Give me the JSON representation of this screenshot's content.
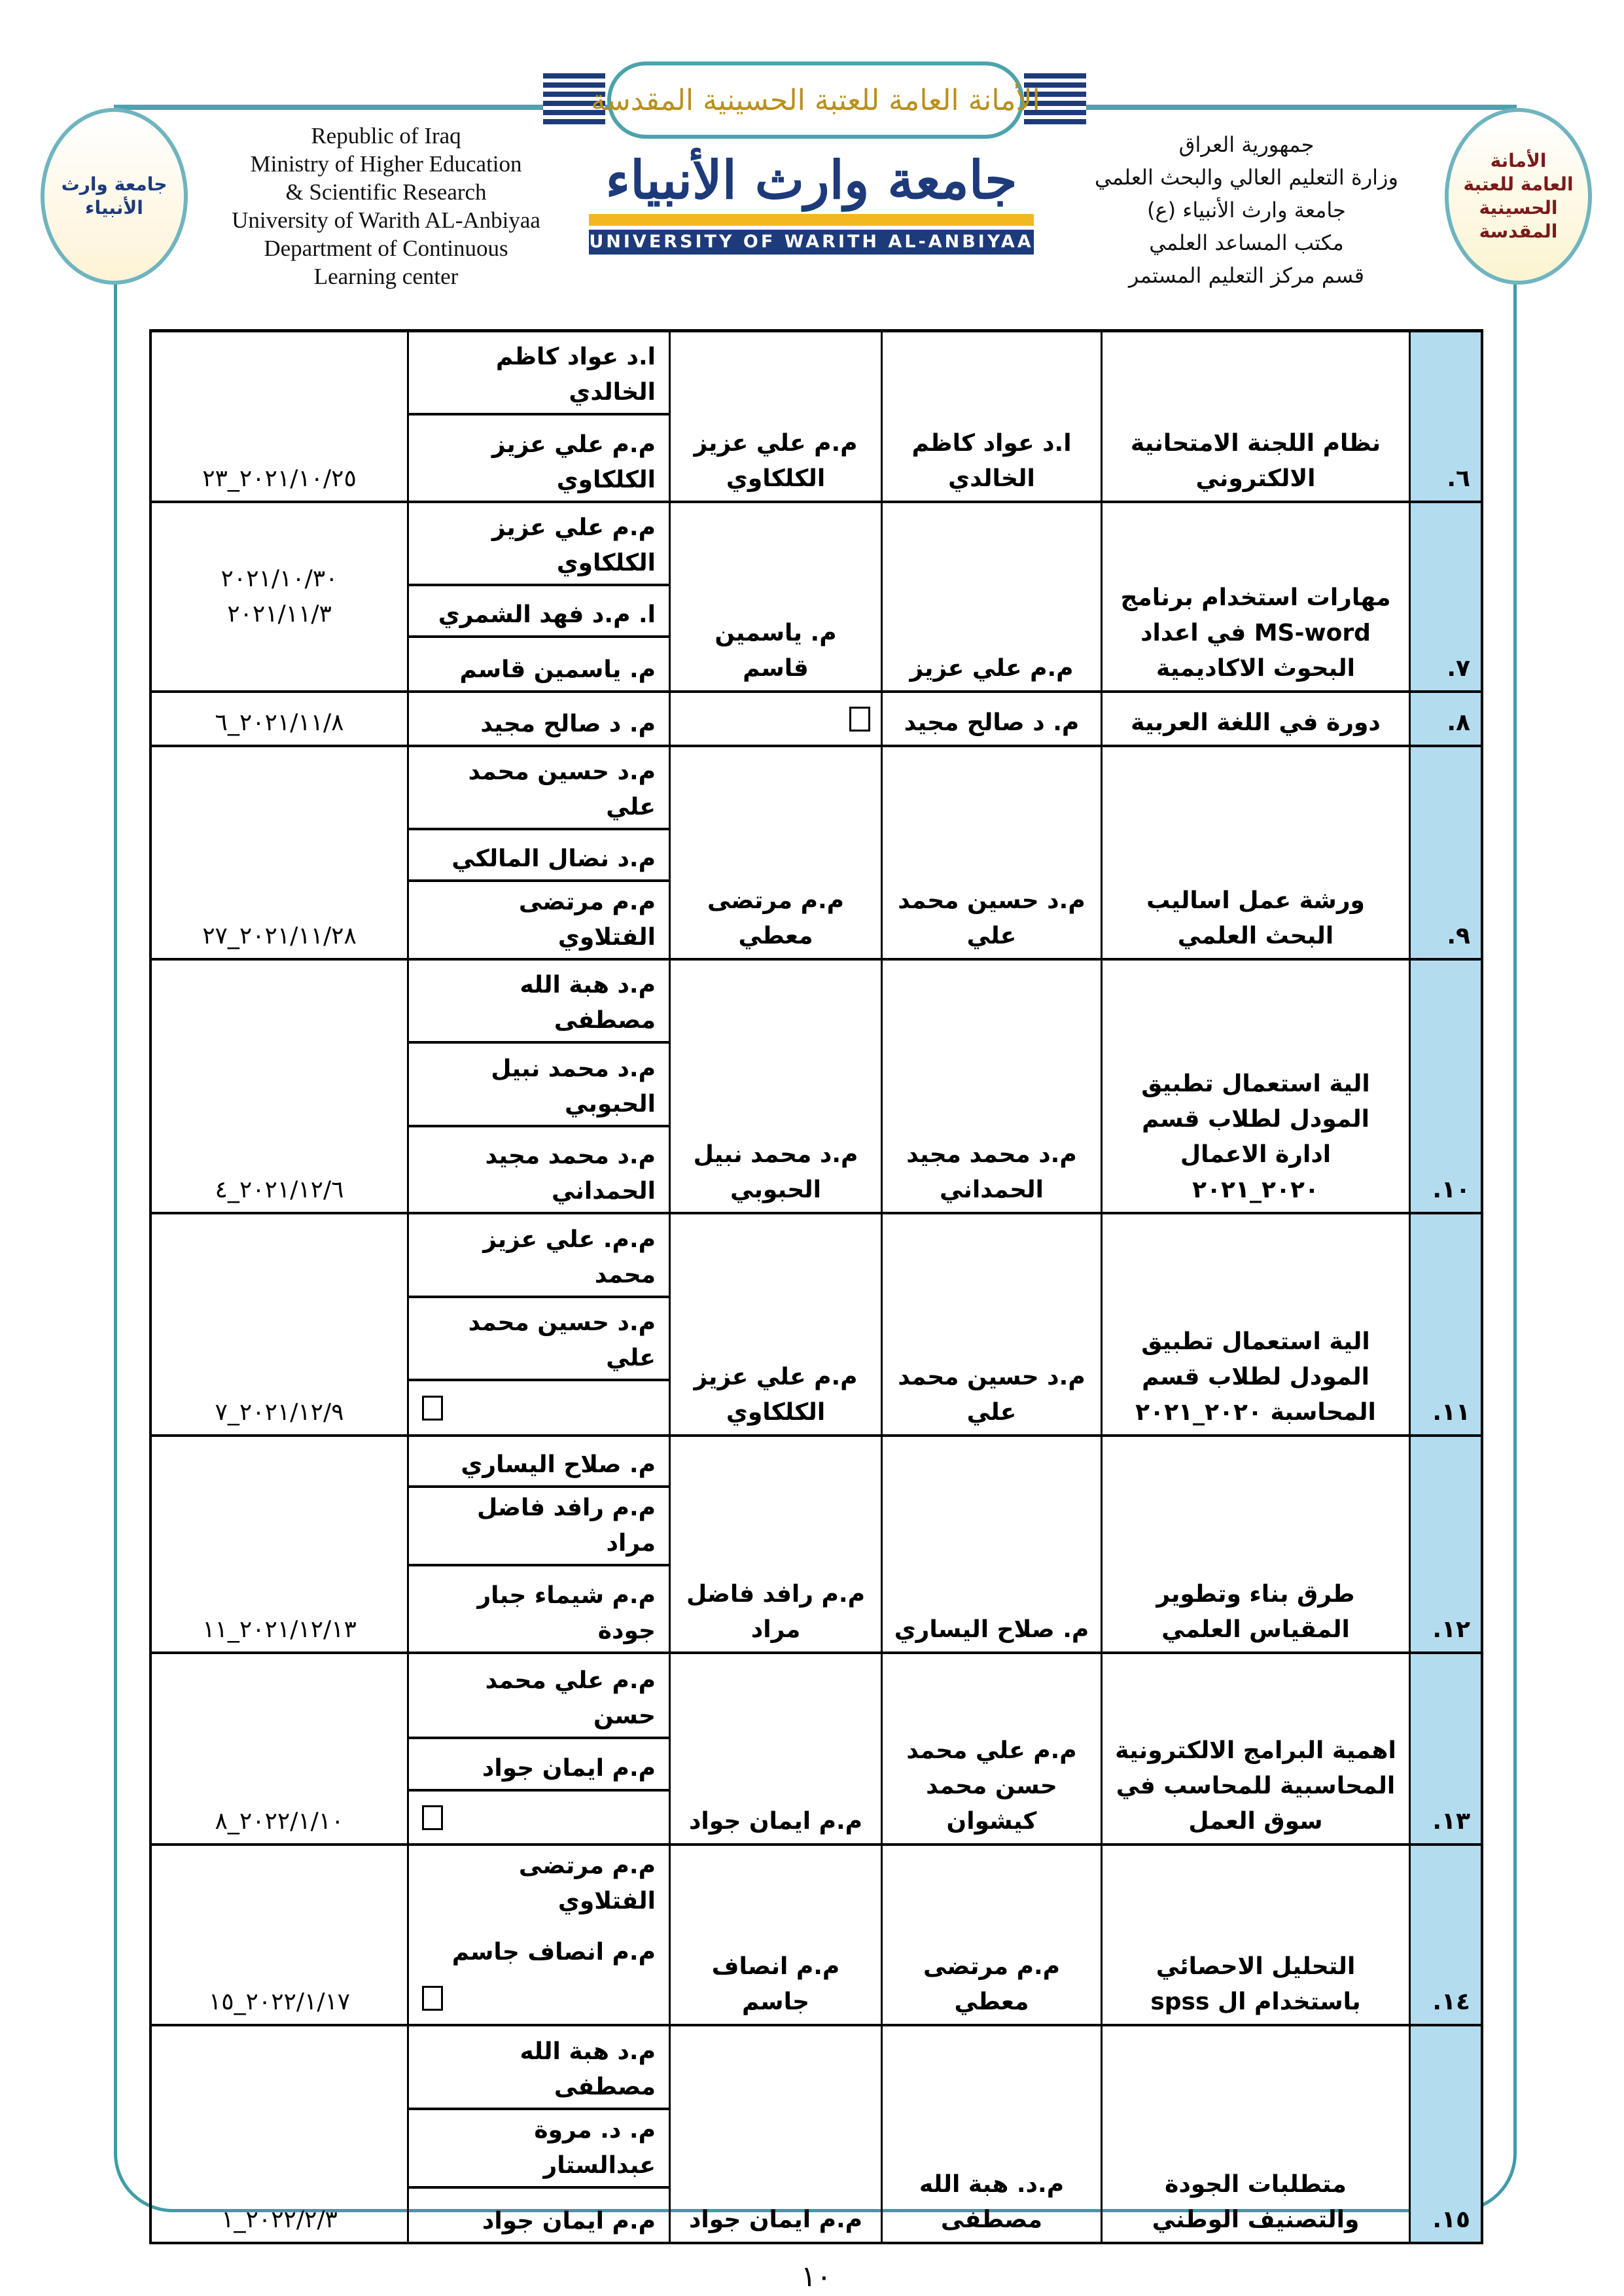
{
  "header": {
    "banner_text": "الأمانة العامة للعتبة الحسينية المقدسة",
    "english_lines": [
      "Republic of Iraq",
      "Ministry of  Higher Education",
      "& Scientific Research",
      "University of  Warith AL-Anbiyaa",
      "Department of Continuous",
      "Learning center"
    ],
    "arabic_lines": [
      "جمهورية العراق",
      "وزارة التعليم العالي والبحث العلمي",
      "جامعة وارث الأنبياء (ع)",
      "مكتب المساعد العلمي",
      "قسم مركز التعليم المستمر"
    ],
    "logo_arabic": "جامعة وارث الأنبياء",
    "logo_english": "UNIVERSITY OF WARITH AL-ANBIYAA",
    "left_seal": "جامعة وارث الأنبياء",
    "right_seal": "الأمانة العامة للعتبة الحسينية المقدسة",
    "colors": {
      "frame": "#3f9ca6",
      "number_column": "#b3dcef",
      "logo_blue": "#1d3a7a",
      "logo_gold": "#f1b81f"
    }
  },
  "rows": [
    {
      "num": "٦.",
      "title": "نظام اللجنة الامتحانية الالكتروني",
      "presenter": "ا.د عواد كاظم الخالدي",
      "coordinator": "م.م علي عزيز الكلكاوي",
      "members": [
        "ا.د عواد كاظم الخالدي",
        "م.م علي عزيز الكلكاوي"
      ],
      "date": [
        "٢٠٢١/١٠/٢٥_٢٣"
      ]
    },
    {
      "num": "٧.",
      "title": "مهارات استخدام برنامج MS-word في اعداد البحوث الاكاديمية",
      "presenter": "م.م علي عزيز",
      "coordinator": "م. ياسمين قاسم",
      "members": [
        "م.م علي عزيز الكلكاوي",
        "ا. م.د فهد الشمري",
        "م. ياسمين قاسم"
      ],
      "date": [
        "٢٠٢١/١٠/٣٠",
        "٢٠٢١/١١/٣"
      ]
    },
    {
      "num": "٨.",
      "title": "دورة في اللغة العربية",
      "presenter": "م. د صالح مجيد",
      "coordinator": "☐",
      "members": [
        "م. د صالح مجيد"
      ],
      "date": [
        "٢٠٢١/١١/٨_٦"
      ]
    },
    {
      "num": "٩.",
      "title": "ورشة عمل اساليب البحث العلمي",
      "presenter": "م.د حسين محمد علي",
      "coordinator": "م.م مرتضى معطي",
      "members": [
        "م.د حسين محمد علي",
        "م.د نضال المالكي",
        "م.م مرتضى الفتلاوي"
      ],
      "date": [
        "٢٠٢١/١١/٢٨_٢٧"
      ]
    },
    {
      "num": "١٠.",
      "title": "الية استعمال تطبيق المودل لطلاب قسم ادارة الاعمال ٢٠٢٠_٢٠٢١",
      "presenter": "م.د محمد مجيد الحمداني",
      "coordinator": "م.د محمد نبيل الحبوبي",
      "members": [
        "م.د هبة الله مصطفى",
        "م.د محمد نبيل الحبوبي",
        "م.د محمد مجيد الحمداني"
      ],
      "date": [
        "٢٠٢١/١٢/٦_٤"
      ]
    },
    {
      "num": "١١.",
      "title": "الية استعمال تطبيق المودل لطلاب قسم المحاسبة ٢٠٢٠_٢٠٢١",
      "presenter": "م.د حسين محمد علي",
      "coordinator": "م.م علي عزيز الكلكاوي",
      "members": [
        "م.م. علي عزيز محمد",
        "م.د حسين محمد علي",
        "☐"
      ],
      "date": [
        "٢٠٢١/١٢/٩_٧"
      ]
    },
    {
      "num": "١٢.",
      "title": "طرق بناء وتطوير المقياس العلمي",
      "presenter": "م. صلاح اليساري",
      "coordinator": "م.م رافد فاضل مراد",
      "members": [
        "م. صلاح اليساري",
        "م.م رافد فاضل مراد",
        "م.م شيماء جبار جودة"
      ],
      "date": [
        "٢٠٢١/١٢/١٣_١١"
      ]
    },
    {
      "num": "١٣.",
      "title": "اهمية البرامج الالكترونية المحاسبية للمحاسب في سوق العمل",
      "presenter": "م.م علي محمد حسن محمد كيشوان",
      "coordinator": "م.م ايمان جواد",
      "members": [
        "م.م علي محمد حسن",
        "م.م ايمان جواد",
        "☐"
      ],
      "date": [
        "٢٠٢٢/١/١٠_٨"
      ]
    },
    {
      "num": "١٤.",
      "title": "التحليل الاحصائي باستخدام ال spss",
      "presenter": "م.م مرتضى معطي",
      "coordinator": "م.م انصاف جاسم",
      "members": [
        "م.م مرتضى الفتلاوي",
        "م.م انصاف جاسم",
        "☐"
      ],
      "date": [
        "٢٠٢٢/١/١٧_١٥"
      ]
    },
    {
      "num": "١٥.",
      "title": "متطلبات الجودة والتصنيف الوطني",
      "presenter": "م.د. هبة الله مصطفى",
      "coordinator": "م.م ايمان جواد",
      "members": [
        "م.د هبة الله مصطفى",
        "م. د. مروة عبدالستار",
        "م.م ايمان جواد"
      ],
      "date": [
        "٢٠٢٢/٢/٣_١"
      ]
    }
  ],
  "page_number": "١٠"
}
